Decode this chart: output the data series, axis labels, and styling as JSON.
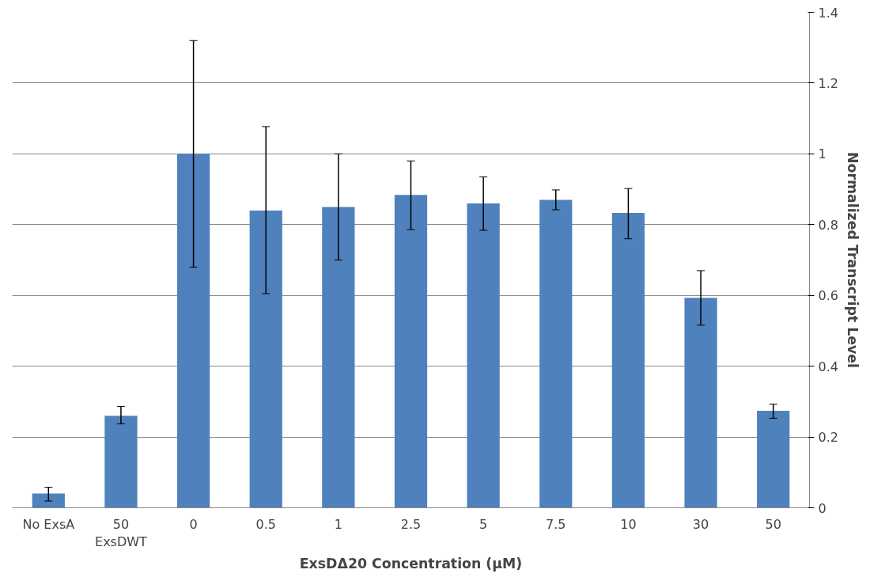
{
  "chart_data": {
    "type": "bar",
    "xlabel": "ExsDΔ20 Concentration (µM)",
    "ylabel": "Normalized Transcript Level",
    "categories": [
      "No ExsA",
      "50\nExsDWT",
      "0",
      "0.5",
      "1",
      "2.5",
      "5",
      "7.5",
      "10",
      "30",
      "50"
    ],
    "values": [
      0.04,
      0.26,
      1.0,
      0.84,
      0.85,
      0.884,
      0.86,
      0.87,
      0.833,
      0.593,
      0.274
    ],
    "errors": [
      [
        0.019,
        0.058
      ],
      [
        0.237,
        0.286
      ],
      [
        0.68,
        1.32
      ],
      [
        0.605,
        1.077
      ],
      [
        0.7,
        1.0
      ],
      [
        0.786,
        0.98
      ],
      [
        0.784,
        0.935
      ],
      [
        0.842,
        0.898
      ],
      [
        0.76,
        0.902
      ],
      [
        0.516,
        0.67
      ],
      [
        0.253,
        0.293
      ]
    ],
    "color": "#4f81bd",
    "ylim": [
      0,
      1.4
    ],
    "yticks": [
      0,
      0.2,
      0.4,
      0.6,
      0.8,
      1,
      1.2,
      1.4
    ],
    "grid": "y"
  }
}
